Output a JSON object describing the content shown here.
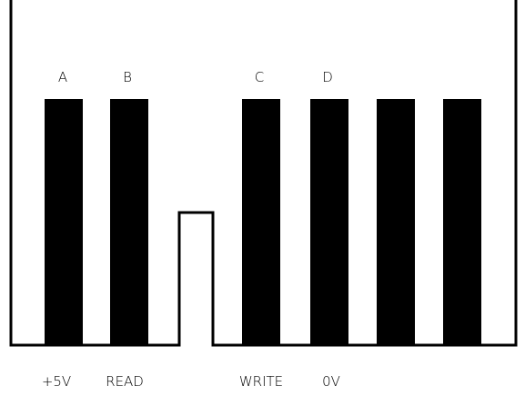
{
  "diagram": {
    "top_labels": {
      "pin_1": "A",
      "pin_2": "B",
      "pin_4": "C",
      "pin_5": "D"
    },
    "bottom_labels": {
      "pin_1": "+5V",
      "pin_2": "READ",
      "pin_4": "WRITE",
      "pin_5": "0V"
    },
    "colors": {
      "pin_fill": "#000000",
      "line": "#000000",
      "background": "#ffffff"
    }
  }
}
